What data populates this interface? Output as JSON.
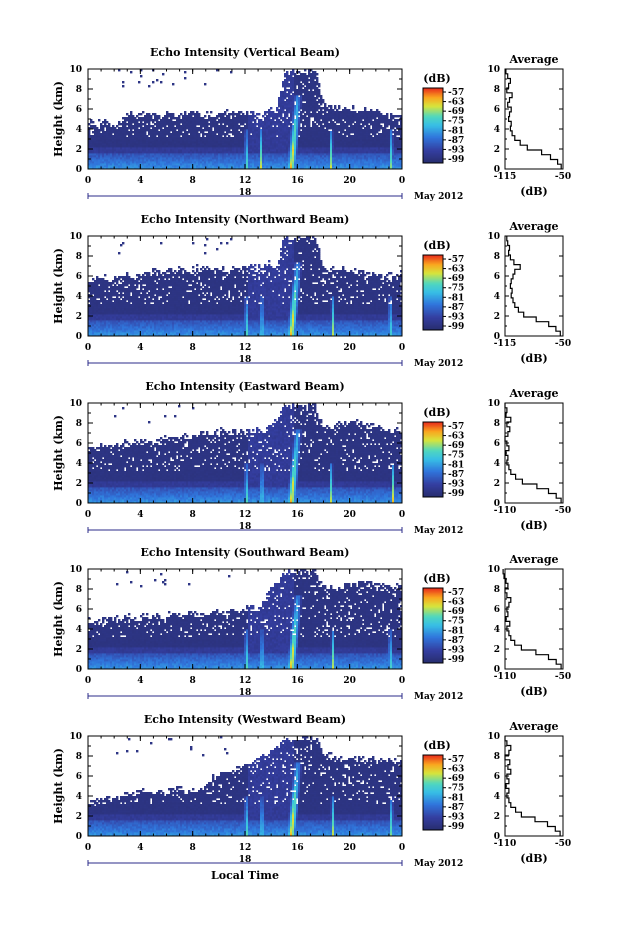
{
  "chart_data": [
    {
      "type": "heatmap",
      "title": "Echo Intensity (Vertical Beam)",
      "ylabel": "Height (km)",
      "xlabel": "",
      "ylim": [
        0,
        10
      ],
      "yticks": [
        "0",
        "2",
        "4",
        "6",
        "8",
        "10"
      ],
      "xlim": [
        0,
        24
      ],
      "xticks": [
        "0",
        "4",
        "8",
        "12",
        "16",
        "20",
        "0"
      ],
      "date_day": "18",
      "date_month": "May 2012",
      "colorbar": {
        "unit": "(dB)",
        "ticks": [
          "-57",
          "-63",
          "-69",
          "-75",
          "-81",
          "-87",
          "-93",
          "-99"
        ]
      },
      "profile": {
        "title": "Average",
        "xlabel": "(dB)",
        "xlim": [
          -115,
          -50
        ],
        "xticks": [
          "-115",
          "-50"
        ],
        "yticks": [
          "0",
          "2",
          "4",
          "6",
          "8",
          "10"
        ],
        "values": [
          -52,
          -56,
          -64,
          -74,
          -90,
          -98,
          -104,
          -107,
          -109,
          -108,
          -111,
          -110,
          -108,
          -112,
          -110,
          -107,
          -113,
          -111,
          -109,
          -112,
          -114
        ]
      },
      "cloud_top_km": [
        4.9,
        4.4,
        4.8,
        4.3,
        4.6,
        5.7,
        5.2,
        5.5,
        5.4,
        5.1,
        5.6,
        5.3,
        5.2,
        5.8,
        5.5,
        5.4,
        5.3,
        5.6,
        5.5,
        5.4,
        5.7,
        5.6,
        5.2,
        5.9,
        5.5,
        9.6,
        9.8,
        9.7,
        9.6,
        9.8,
        6.3,
        6.1,
        6.2,
        5.8,
        6.0,
        5.7,
        5.9,
        5.6,
        5.5,
        5.1,
        5.4
      ],
      "rain_events_hr": [
        12.1,
        13.2,
        15.6,
        18.6,
        23.2
      ]
    },
    {
      "type": "heatmap",
      "title": "Echo Intensity (Northward Beam)",
      "ylabel": "Height (km)",
      "xlabel": "",
      "ylim": [
        0,
        10
      ],
      "yticks": [
        "0",
        "2",
        "4",
        "6",
        "8",
        "10"
      ],
      "xlim": [
        0,
        24
      ],
      "xticks": [
        "0",
        "4",
        "8",
        "12",
        "16",
        "20",
        "0"
      ],
      "date_day": "18",
      "date_month": "May 2012",
      "colorbar": {
        "unit": "(dB)",
        "ticks": [
          "-57",
          "-63",
          "-69",
          "-75",
          "-81",
          "-87",
          "-93",
          "-99"
        ]
      },
      "profile": {
        "title": "Average",
        "xlabel": "(dB)",
        "xlim": [
          -115,
          -50
        ],
        "xticks": [
          "-115",
          "-50"
        ],
        "yticks": [
          "0",
          "2",
          "4",
          "6",
          "8",
          "10"
        ],
        "values": [
          -53,
          -58,
          -66,
          -80,
          -94,
          -100,
          -104,
          -106,
          -108,
          -107,
          -109,
          -108,
          -106,
          -104,
          -98,
          -105,
          -109,
          -111,
          -110,
          -112,
          -113
        ]
      },
      "cloud_top_km": [
        5.4,
        5.7,
        5.8,
        5.5,
        5.9,
        6.1,
        6.0,
        6.2,
        6.3,
        6.4,
        6.5,
        6.4,
        6.6,
        6.5,
        6.8,
        6.7,
        6.8,
        6.7,
        6.6,
        6.8,
        6.7,
        6.9,
        6.8,
        7.1,
        6.8,
        9.8,
        9.8,
        9.8,
        9.8,
        9.8,
        6.6,
        6.5,
        6.5,
        6.6,
        6.4,
        6.2,
        6.1,
        6.0,
        5.9,
        6.0,
        6.2
      ],
      "rain_events_hr": [
        12.1,
        13.3,
        15.6,
        18.7,
        23.1
      ]
    },
    {
      "type": "heatmap",
      "title": "Echo Intensity (Eastward Beam)",
      "ylabel": "Height (km)",
      "xlabel": "",
      "ylim": [
        0,
        10
      ],
      "yticks": [
        "0",
        "2",
        "4",
        "6",
        "8",
        "10"
      ],
      "xlim": [
        0,
        24
      ],
      "xticks": [
        "0",
        "4",
        "8",
        "12",
        "16",
        "20",
        "0"
      ],
      "date_day": "18",
      "date_month": "May 2012",
      "colorbar": {
        "unit": "(dB)",
        "ticks": [
          "-57",
          "-63",
          "-69",
          "-75",
          "-81",
          "-87",
          "-93",
          "-99"
        ]
      },
      "profile": {
        "title": "Average",
        "xlabel": "(dB)",
        "xlim": [
          -110,
          -50
        ],
        "xticks": [
          "-110",
          "-50"
        ],
        "yticks": [
          "0",
          "2",
          "4",
          "6",
          "8",
          "10"
        ],
        "values": [
          -52,
          -57,
          -65,
          -77,
          -92,
          -99,
          -104,
          -106,
          -108,
          -107,
          -109,
          -106,
          -108,
          -110,
          -107,
          -105,
          -108,
          -104,
          -109,
          -108,
          -110
        ]
      },
      "cloud_top_km": [
        5.4,
        5.5,
        5.7,
        5.6,
        5.8,
        5.9,
        6.0,
        6.2,
        6.1,
        6.3,
        6.5,
        6.4,
        6.6,
        6.7,
        6.8,
        7.0,
        6.9,
        7.1,
        6.9,
        7.2,
        7.0,
        7.3,
        7.1,
        7.4,
        8.2,
        9.7,
        9.8,
        9.7,
        9.8,
        9.7,
        7.5,
        7.6,
        7.8,
        8.0,
        8.1,
        7.9,
        7.6,
        7.5,
        7.3,
        7.1,
        7.2
      ],
      "rain_events_hr": [
        12.1,
        13.3,
        15.6,
        18.6,
        23.3
      ]
    },
    {
      "type": "heatmap",
      "title": "Echo Intensity (Southward Beam)",
      "ylabel": "Height (km)",
      "xlabel": "",
      "ylim": [
        0,
        10
      ],
      "yticks": [
        "0",
        "2",
        "4",
        "6",
        "8",
        "10"
      ],
      "xlim": [
        0,
        24
      ],
      "xticks": [
        "0",
        "4",
        "8",
        "12",
        "16",
        "20",
        "0"
      ],
      "date_day": "18",
      "date_month": "May 2012",
      "colorbar": {
        "unit": "(dB)",
        "ticks": [
          "-57",
          "-63",
          "-69",
          "-75",
          "-81",
          "-87",
          "-93",
          "-99"
        ]
      },
      "profile": {
        "title": "Average",
        "xlabel": "(dB)",
        "xlim": [
          -110,
          -50
        ],
        "xticks": [
          "-110",
          "-50"
        ],
        "yticks": [
          "0",
          "2",
          "4",
          "6",
          "8",
          "10"
        ],
        "values": [
          -52,
          -57,
          -65,
          -78,
          -93,
          -100,
          -104,
          -106,
          -108,
          -105,
          -109,
          -107,
          -108,
          -106,
          -104,
          -108,
          -110,
          -107,
          -109,
          -111,
          -112
        ]
      },
      "cloud_top_km": [
        4.8,
        4.6,
        4.9,
        5.1,
        4.9,
        5.2,
        5.0,
        5.3,
        5.1,
        5.4,
        5.2,
        5.5,
        5.3,
        5.6,
        5.4,
        5.5,
        5.7,
        5.6,
        5.8,
        5.7,
        5.9,
        6.1,
        6.0,
        7.9,
        8.6,
        9.6,
        9.8,
        9.7,
        9.8,
        9.6,
        8.2,
        8.0,
        8.1,
        8.3,
        8.5,
        8.6,
        8.4,
        8.3,
        8.5,
        8.2,
        8.1
      ],
      "rain_events_hr": [
        12.1,
        13.3,
        15.6,
        18.7,
        23.1
      ]
    },
    {
      "type": "heatmap",
      "title": "Echo Intensity (Westward Beam)",
      "ylabel": "Height (km)",
      "xlabel": "Local Time",
      "ylim": [
        0,
        10
      ],
      "yticks": [
        "0",
        "2",
        "4",
        "6",
        "8",
        "10"
      ],
      "xlim": [
        0,
        24
      ],
      "xticks": [
        "0",
        "4",
        "8",
        "12",
        "16",
        "20",
        "0"
      ],
      "date_day": "18",
      "date_month": "May 2012",
      "colorbar": {
        "unit": "(dB)",
        "ticks": [
          "-57",
          "-63",
          "-69",
          "-75",
          "-81",
          "-87",
          "-93",
          "-99"
        ]
      },
      "profile": {
        "title": "Average",
        "xlabel": "(dB)",
        "xlim": [
          -110,
          -50
        ],
        "xticks": [
          "-110",
          "-50"
        ],
        "yticks": [
          "0",
          "2",
          "4",
          "6",
          "8",
          "10"
        ],
        "values": [
          -53,
          -58,
          -66,
          -79,
          -93,
          -99,
          -104,
          -106,
          -108,
          -106,
          -109,
          -106,
          -108,
          -104,
          -107,
          -105,
          -110,
          -106,
          -104,
          -108,
          -110
        ]
      },
      "cloud_top_km": [
        3.2,
        3.5,
        3.8,
        3.6,
        3.9,
        4.1,
        4.3,
        4.6,
        4.4,
        4.5,
        4.3,
        4.7,
        4.6,
        4.5,
        4.6,
        4.8,
        5.9,
        6.1,
        6.4,
        6.7,
        6.9,
        7.2,
        7.6,
        8.1,
        8.8,
        9.7,
        9.8,
        9.7,
        9.8,
        9.7,
        8.3,
        8.0,
        7.8,
        7.6,
        7.7,
        7.9,
        7.6,
        7.5,
        7.6,
        7.4,
        7.3
      ],
      "rain_events_hr": [
        12.1,
        13.3,
        15.6,
        18.7,
        23.2
      ]
    }
  ]
}
